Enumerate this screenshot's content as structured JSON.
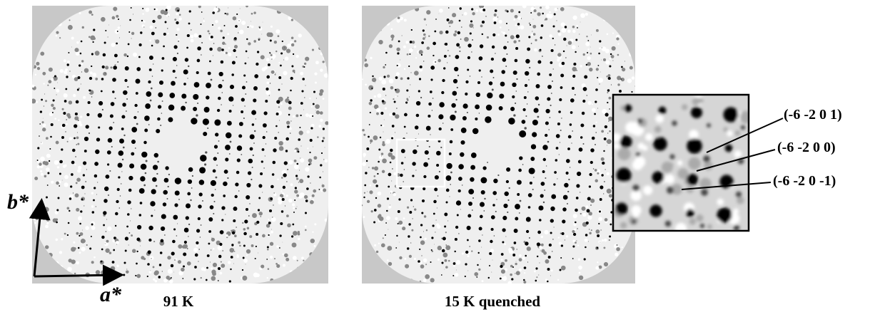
{
  "axes": {
    "b_label": "b*",
    "a_label": "a*"
  },
  "panels": [
    {
      "caption": "91 K"
    },
    {
      "caption": "15 K quenched"
    }
  ],
  "inset": {
    "labels": [
      "(-6 -2 0 1)",
      "(-6 -2 0 0)",
      "(-6 -2 0 -1)"
    ]
  }
}
